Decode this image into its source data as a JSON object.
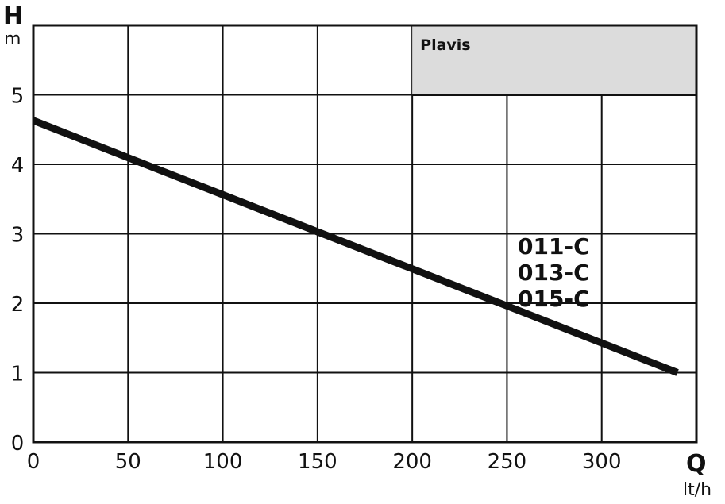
{
  "chart_data": {
    "type": "line",
    "brand": "Plavis",
    "xlabel": "Q",
    "xunit": "lt/h",
    "ylabel": "H",
    "yunit": "m",
    "xlim": [
      0,
      350
    ],
    "ylim": [
      0,
      6
    ],
    "xticks": [
      0,
      50,
      100,
      150,
      200,
      250,
      300
    ],
    "yticks": [
      0,
      1,
      2,
      3,
      4,
      5
    ],
    "grid": true,
    "series": [
      {
        "name": "",
        "x": [
          0,
          340
        ],
        "y": [
          4.63,
          1.0
        ]
      }
    ],
    "models": [
      "011-C",
      "013-C",
      "015-C"
    ],
    "colors": {
      "line": "#111111",
      "grid": "#111111",
      "legend_box": "#dcdcdc"
    }
  }
}
